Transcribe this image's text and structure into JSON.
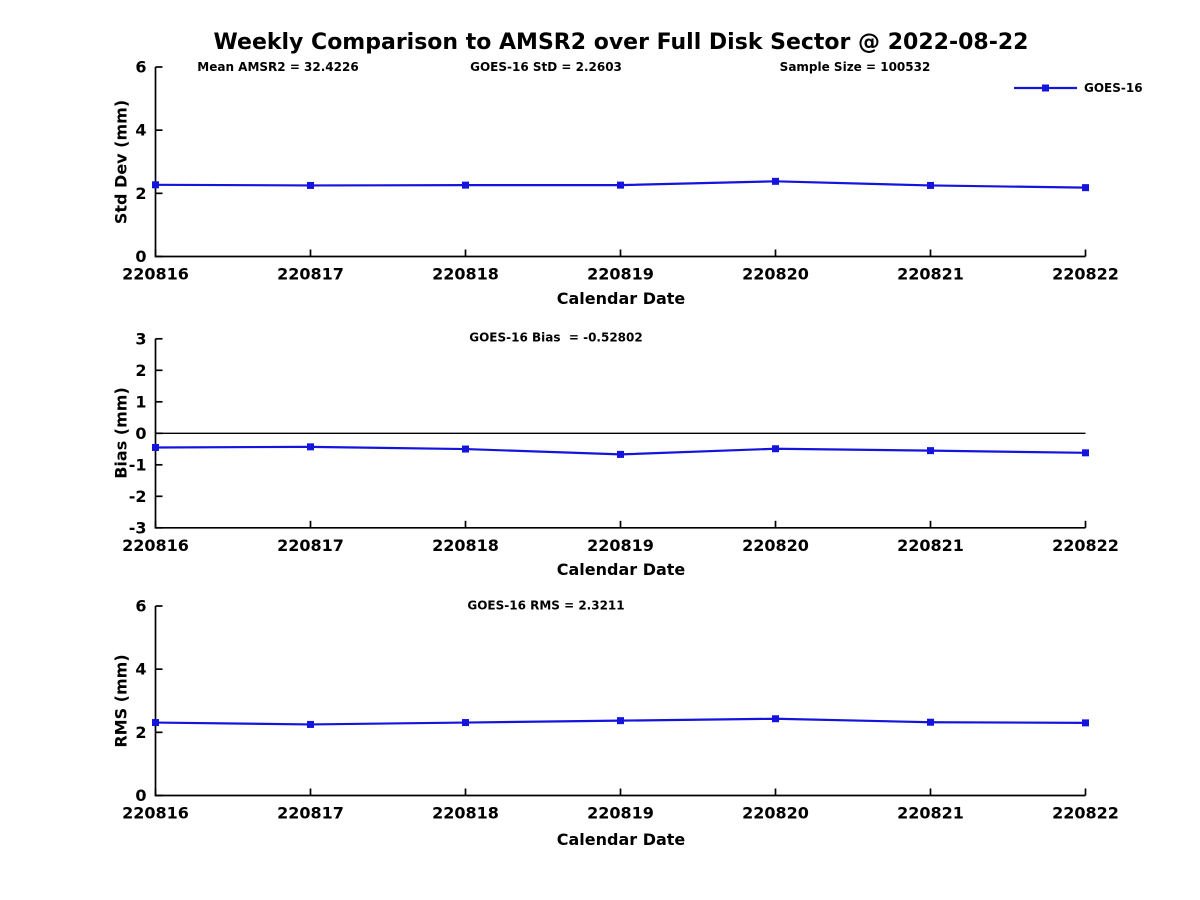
{
  "figure": {
    "title": "Weekly Comparison to AMSR2 over Full Disk Sector @ 2022-08-22",
    "annotations": [
      {
        "id": "mean-amsr2",
        "text": "Mean AMSR2 = 32.4226"
      },
      {
        "id": "goes16-std",
        "text": "GOES-16 StD = 2.2603"
      },
      {
        "id": "sample-size",
        "text": "Sample Size = 100532"
      }
    ],
    "legend": {
      "label": "GOES-16",
      "position": "top-right"
    }
  },
  "colors": {
    "series": "#1414DC",
    "axis": "#000000",
    "text": "#000000",
    "background": "#FFFFFF"
  },
  "chart_data": [
    {
      "type": "line",
      "id": "std_dev",
      "title": "",
      "ylabel": "Std Dev (mm)",
      "xlabel": "Calendar Date",
      "ylim": [
        0,
        6
      ],
      "yticks": [
        0,
        2,
        4,
        6
      ],
      "grid": false,
      "legend": "GOES-16",
      "categories": [
        "220816",
        "220817",
        "220818",
        "220819",
        "220820",
        "220821",
        "220822"
      ],
      "series": [
        {
          "name": "GOES-16",
          "marker": "square",
          "values": [
            2.27,
            2.25,
            2.26,
            2.26,
            2.38,
            2.25,
            2.18
          ]
        }
      ]
    },
    {
      "type": "line",
      "id": "bias",
      "title": "GOES-16 Bias  = -0.52802",
      "ylabel": "Bias (mm)",
      "xlabel": "Calendar Date",
      "ylim": [
        -3,
        3
      ],
      "yticks": [
        3,
        2,
        1,
        0,
        -1,
        -2,
        -3
      ],
      "zero_line": true,
      "grid": false,
      "legend": "GOES-16",
      "categories": [
        "220816",
        "220817",
        "220818",
        "220819",
        "220820",
        "220821",
        "220822"
      ],
      "series": [
        {
          "name": "GOES-16",
          "marker": "square",
          "values": [
            -0.45,
            -0.43,
            -0.5,
            -0.67,
            -0.49,
            -0.55,
            -0.62
          ]
        }
      ]
    },
    {
      "type": "line",
      "id": "rms",
      "title": "GOES-16 RMS = 2.3211",
      "ylabel": "RMS (mm)",
      "xlabel": "Calendar Date",
      "ylim": [
        0,
        6
      ],
      "yticks": [
        0,
        2,
        4,
        6
      ],
      "grid": false,
      "legend": "GOES-16",
      "categories": [
        "220816",
        "220817",
        "220818",
        "220819",
        "220820",
        "220821",
        "220822"
      ],
      "series": [
        {
          "name": "GOES-16",
          "marker": "square",
          "values": [
            2.31,
            2.25,
            2.31,
            2.37,
            2.43,
            2.32,
            2.3
          ]
        }
      ]
    }
  ]
}
